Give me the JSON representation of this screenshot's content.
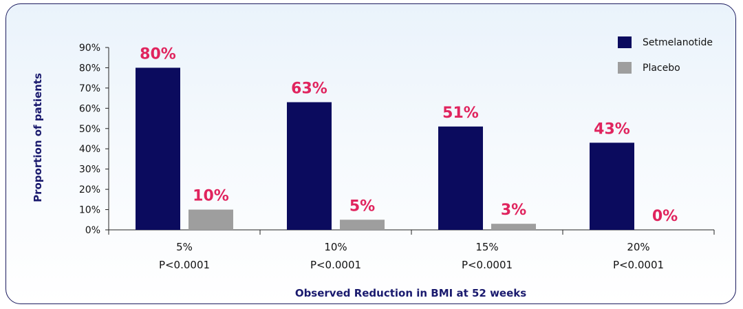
{
  "chart_data": {
    "type": "bar",
    "categories": [
      "5%",
      "10%",
      "15%",
      "20%"
    ],
    "p_values": [
      "P<0.0001",
      "P<0.0001",
      "P<0.0001",
      "P<0.0001"
    ],
    "series": [
      {
        "name": "Setmelanotide",
        "values": [
          80,
          63,
          51,
          43
        ],
        "labels": [
          "80%",
          "63%",
          "51%",
          "43%"
        ],
        "color": "#0b0b5e"
      },
      {
        "name": "Placebo",
        "values": [
          10,
          5,
          3,
          0
        ],
        "labels": [
          "10%",
          "5%",
          "3%",
          "0%"
        ],
        "color": "#9e9e9e"
      }
    ],
    "xlabel": "Observed Reduction in BMI at 52 weeks",
    "ylabel": "Proportion of patients",
    "ylim": [
      0,
      90
    ],
    "yticks": [
      "0%",
      "10%",
      "20%",
      "30%",
      "40%",
      "50%",
      "60%",
      "70%",
      "80%",
      "90%"
    ],
    "legend_position": "top-right",
    "label_color": "#e0245e",
    "grid": false
  }
}
